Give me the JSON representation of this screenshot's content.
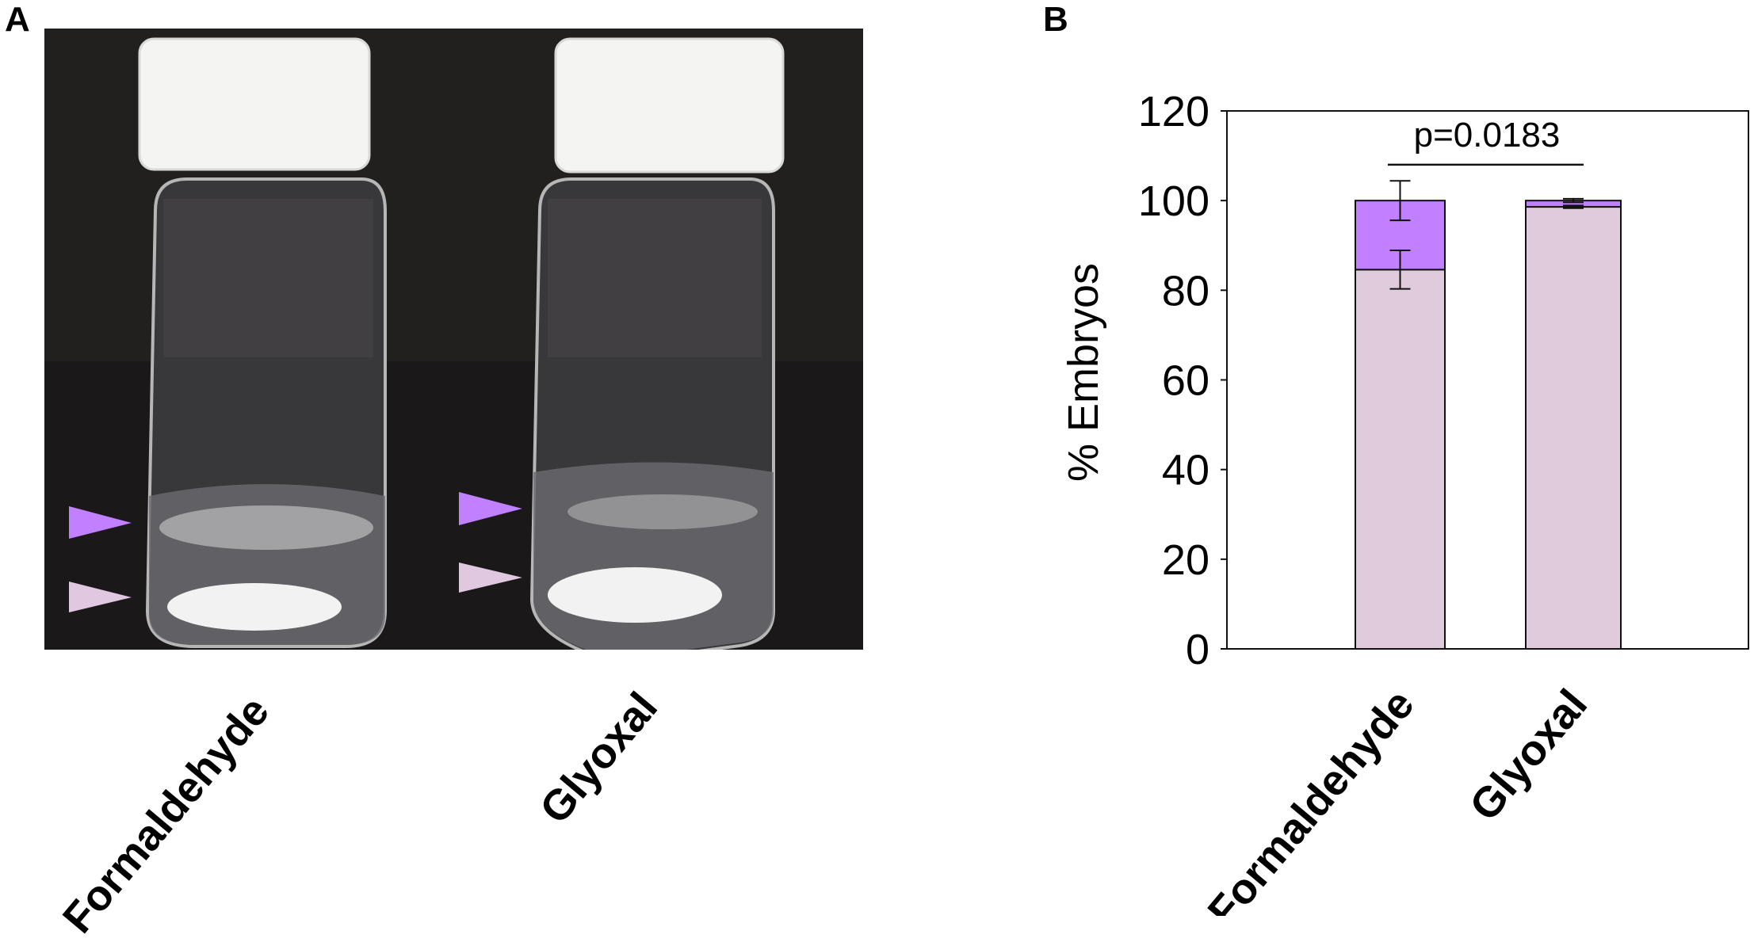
{
  "panel_a": {
    "letter": "A",
    "labels": [
      "Formaldehyde",
      "Glyoxal"
    ],
    "background_color": "#221f1f",
    "arrow_colors": {
      "upper": "#c080ff",
      "lower": "#e0c8e0"
    }
  },
  "panel_b": {
    "letter": "B"
  },
  "chart_data": {
    "type": "bar",
    "stacked": true,
    "categories": [
      "Formaldehyde",
      "Glyoxal"
    ],
    "series": [
      {
        "values": [
          84.6,
          98.6
        ],
        "errors": [
          4.3,
          0.3
        ],
        "color": "#e0cbdc"
      },
      {
        "values": [
          15.4,
          1.4
        ],
        "errors": [
          4.4,
          0.4
        ],
        "color": "#c080ff"
      }
    ],
    "ylabel": "% Embryos",
    "xlabel": "",
    "ylim": [
      0,
      120
    ],
    "yticks": [
      "0",
      "20",
      "40",
      "60",
      "80",
      "100",
      "120"
    ],
    "annotation": {
      "text": "p=0.0183",
      "between": [
        "Formaldehyde",
        "Glyoxal"
      ],
      "y": 108
    },
    "grid": false,
    "legend": "none"
  }
}
